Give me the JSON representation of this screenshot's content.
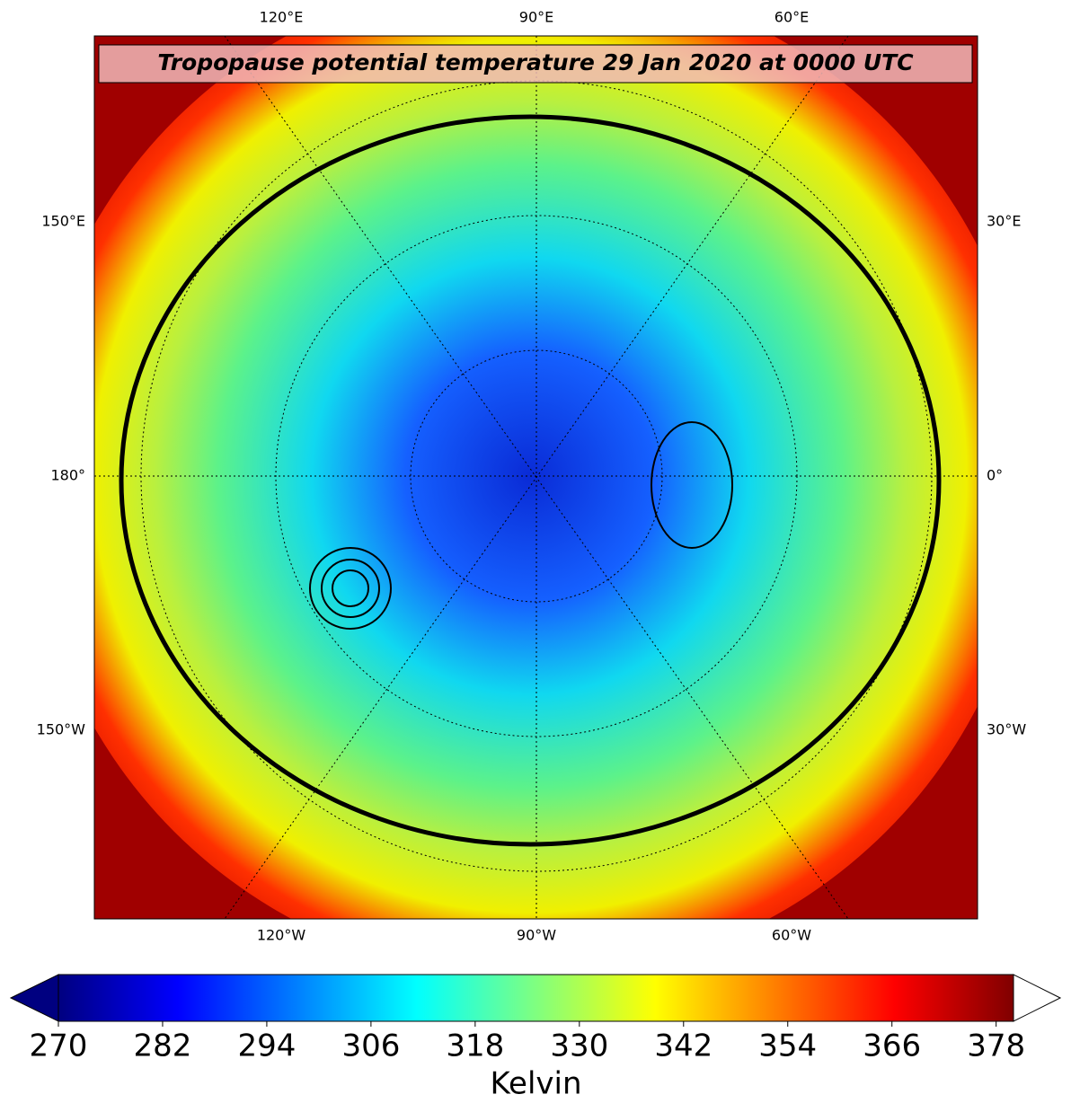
{
  "title": "Tropopause potential temperature 29 Jan 2020 at 0000 UTC",
  "map_labels": {
    "top": [
      "120°E",
      "90°E",
      "60°E"
    ],
    "bottom": [
      "120°W",
      "90°W",
      "60°W"
    ],
    "left": [
      "150°E",
      "180°",
      "150°W"
    ],
    "right": [
      "30°E",
      "0°",
      "30°W"
    ]
  },
  "colorbar": {
    "label": "Kelvin",
    "colormap": "jet",
    "range": [
      270,
      380
    ],
    "ticks": [
      270,
      282,
      294,
      306,
      318,
      330,
      342,
      354,
      366,
      378
    ]
  }
}
